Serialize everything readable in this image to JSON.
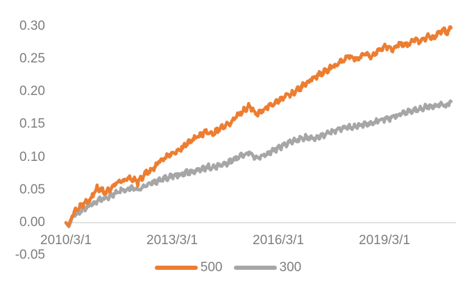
{
  "chart_data": {
    "type": "line",
    "title": "",
    "xlabel": "",
    "ylabel": "",
    "grid": "off",
    "x_axis": {
      "labels": [
        "2010/3/1",
        "2013/3/1",
        "2016/3/1",
        "2019/3/1"
      ],
      "tick_years": [
        2010.17,
        2013.17,
        2016.17,
        2019.17
      ],
      "range_years": [
        2010.17,
        2021.05
      ]
    },
    "y_axis": {
      "ticks": [
        "0.30",
        "0.25",
        "0.20",
        "0.15",
        "0.10",
        "0.05",
        "0.00",
        "-0.05"
      ],
      "tick_values": [
        0.3,
        0.25,
        0.2,
        0.15,
        0.1,
        0.05,
        0.0,
        -0.05
      ],
      "range": [
        -0.05,
        0.3
      ]
    },
    "legend": {
      "position": "bottom",
      "entries": [
        {
          "label": "500",
          "color": "#ED7D31"
        },
        {
          "label": "300",
          "color": "#A6A6A6"
        }
      ]
    },
    "series": [
      {
        "name": "500",
        "color": "#ED7D31",
        "points": [
          [
            2010.17,
            0.0
          ],
          [
            2010.25,
            -0.005
          ],
          [
            2010.33,
            0.008
          ],
          [
            2010.46,
            0.021
          ],
          [
            2010.65,
            0.028
          ],
          [
            2010.86,
            0.035
          ],
          [
            2011.05,
            0.053
          ],
          [
            2011.3,
            0.046
          ],
          [
            2011.6,
            0.06
          ],
          [
            2011.85,
            0.064
          ],
          [
            2012.03,
            0.068
          ],
          [
            2012.2,
            0.061
          ],
          [
            2012.42,
            0.075
          ],
          [
            2012.6,
            0.081
          ],
          [
            2012.81,
            0.094
          ],
          [
            2013.0,
            0.1
          ],
          [
            2013.21,
            0.107
          ],
          [
            2013.4,
            0.113
          ],
          [
            2013.6,
            0.12
          ],
          [
            2013.8,
            0.128
          ],
          [
            2014.0,
            0.134
          ],
          [
            2014.15,
            0.139
          ],
          [
            2014.3,
            0.135
          ],
          [
            2014.5,
            0.143
          ],
          [
            2014.7,
            0.148
          ],
          [
            2014.9,
            0.156
          ],
          [
            2015.1,
            0.168
          ],
          [
            2015.35,
            0.178
          ],
          [
            2015.55,
            0.165
          ],
          [
            2015.75,
            0.173
          ],
          [
            2015.95,
            0.179
          ],
          [
            2016.17,
            0.186
          ],
          [
            2016.4,
            0.193
          ],
          [
            2016.6,
            0.198
          ],
          [
            2016.8,
            0.206
          ],
          [
            2017.0,
            0.214
          ],
          [
            2017.25,
            0.224
          ],
          [
            2017.5,
            0.231
          ],
          [
            2017.75,
            0.239
          ],
          [
            2018.0,
            0.247
          ],
          [
            2018.2,
            0.255
          ],
          [
            2018.4,
            0.249
          ],
          [
            2018.6,
            0.259
          ],
          [
            2018.8,
            0.254
          ],
          [
            2019.0,
            0.263
          ],
          [
            2019.2,
            0.27
          ],
          [
            2019.4,
            0.263
          ],
          [
            2019.6,
            0.274
          ],
          [
            2019.8,
            0.271
          ],
          [
            2020.0,
            0.279
          ],
          [
            2020.2,
            0.276
          ],
          [
            2020.4,
            0.286
          ],
          [
            2020.55,
            0.282
          ],
          [
            2020.7,
            0.29
          ],
          [
            2020.85,
            0.294
          ],
          [
            2020.95,
            0.289
          ],
          [
            2021.05,
            0.297
          ]
        ]
      },
      {
        "name": "300",
        "color": "#A6A6A6",
        "points": [
          [
            2010.17,
            0.0
          ],
          [
            2010.25,
            -0.006
          ],
          [
            2010.33,
            0.005
          ],
          [
            2010.46,
            0.013
          ],
          [
            2010.65,
            0.02
          ],
          [
            2010.86,
            0.026
          ],
          [
            2011.05,
            0.033
          ],
          [
            2011.25,
            0.036
          ],
          [
            2011.45,
            0.041
          ],
          [
            2011.64,
            0.047
          ],
          [
            2011.85,
            0.05
          ],
          [
            2012.03,
            0.052
          ],
          [
            2012.2,
            0.05
          ],
          [
            2012.42,
            0.058
          ],
          [
            2012.6,
            0.061
          ],
          [
            2012.81,
            0.065
          ],
          [
            2013.0,
            0.068
          ],
          [
            2013.21,
            0.071
          ],
          [
            2013.4,
            0.074
          ],
          [
            2013.6,
            0.077
          ],
          [
            2013.8,
            0.078
          ],
          [
            2014.0,
            0.082
          ],
          [
            2014.2,
            0.085
          ],
          [
            2014.4,
            0.086
          ],
          [
            2014.6,
            0.089
          ],
          [
            2014.8,
            0.093
          ],
          [
            2015.0,
            0.098
          ],
          [
            2015.2,
            0.104
          ],
          [
            2015.35,
            0.108
          ],
          [
            2015.55,
            0.099
          ],
          [
            2015.75,
            0.103
          ],
          [
            2015.95,
            0.107
          ],
          [
            2016.17,
            0.114
          ],
          [
            2016.4,
            0.12
          ],
          [
            2016.6,
            0.124
          ],
          [
            2016.8,
            0.128
          ],
          [
            2017.0,
            0.13
          ],
          [
            2017.2,
            0.129
          ],
          [
            2017.4,
            0.132
          ],
          [
            2017.6,
            0.137
          ],
          [
            2017.8,
            0.141
          ],
          [
            2018.0,
            0.144
          ],
          [
            2018.2,
            0.146
          ],
          [
            2018.4,
            0.148
          ],
          [
            2018.6,
            0.15
          ],
          [
            2018.8,
            0.152
          ],
          [
            2019.0,
            0.155
          ],
          [
            2019.2,
            0.158
          ],
          [
            2019.4,
            0.161
          ],
          [
            2019.6,
            0.165
          ],
          [
            2019.8,
            0.168
          ],
          [
            2020.0,
            0.172
          ],
          [
            2020.2,
            0.174
          ],
          [
            2020.4,
            0.177
          ],
          [
            2020.6,
            0.179
          ],
          [
            2020.75,
            0.181
          ],
          [
            2020.9,
            0.178
          ],
          [
            2021.05,
            0.185
          ]
        ]
      }
    ]
  },
  "colors": {
    "axis_line": "#D9D9D9",
    "tick_text": "#7d7d7d",
    "background": "#FFFFFF"
  }
}
